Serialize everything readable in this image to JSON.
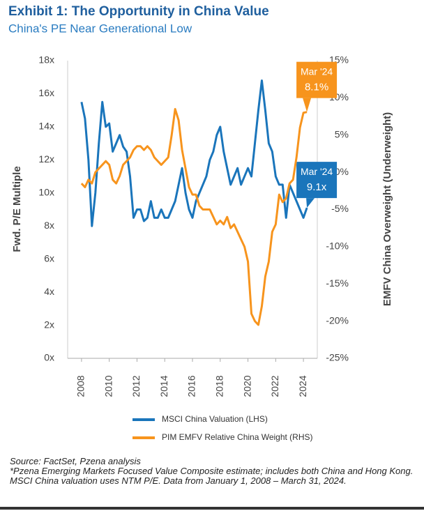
{
  "chart_data": {
    "type": "line",
    "title": "Exhibit 1: The Opportunity in China Value",
    "subtitle": "China's PE Near Generational Low",
    "y_label": "Fwd. P/E Multiple",
    "y2_label": "EMFV China Overweight (Underweight)",
    "x": [
      2008,
      2008.25,
      2008.5,
      2008.75,
      2009,
      2009.25,
      2009.5,
      2009.75,
      2010,
      2010.25,
      2010.5,
      2010.75,
      2011,
      2011.25,
      2011.5,
      2011.75,
      2012,
      2012.25,
      2012.5,
      2012.75,
      2013,
      2013.25,
      2013.5,
      2013.75,
      2014,
      2014.25,
      2014.5,
      2014.75,
      2015,
      2015.25,
      2015.5,
      2015.75,
      2016,
      2016.25,
      2016.5,
      2016.75,
      2017,
      2017.25,
      2017.5,
      2017.75,
      2018,
      2018.25,
      2018.5,
      2018.75,
      2019,
      2019.25,
      2019.5,
      2019.75,
      2020,
      2020.25,
      2020.5,
      2020.75,
      2021,
      2021.25,
      2021.5,
      2021.75,
      2022,
      2022.25,
      2022.5,
      2022.75,
      2023,
      2023.25,
      2023.5,
      2023.75,
      2024,
      2024.25
    ],
    "xlim": [
      2007,
      2025
    ],
    "xticks": [
      2008,
      2010,
      2012,
      2014,
      2016,
      2018,
      2020,
      2022,
      2024
    ],
    "ylim": [
      0,
      18
    ],
    "yticks": [
      {
        "value": 0,
        "label": "0x"
      },
      {
        "value": 2,
        "label": "2x"
      },
      {
        "value": 4,
        "label": "4x"
      },
      {
        "value": 6,
        "label": "6x"
      },
      {
        "value": 8,
        "label": "8x"
      },
      {
        "value": 10,
        "label": "10x"
      },
      {
        "value": 12,
        "label": "12x"
      },
      {
        "value": 14,
        "label": "14x"
      },
      {
        "value": 16,
        "label": "16x"
      },
      {
        "value": 18,
        "label": "18x"
      }
    ],
    "y2lim": [
      -25,
      15
    ],
    "y2ticks": [
      {
        "value": 15,
        "label": "15%"
      },
      {
        "value": 10,
        "label": "10%"
      },
      {
        "value": 5,
        "label": "5%"
      },
      {
        "value": 0,
        "label": "0%"
      },
      {
        "value": -5,
        "label": "-5%"
      },
      {
        "value": -10,
        "label": "-10%"
      },
      {
        "value": -15,
        "label": "-15%"
      },
      {
        "value": -20,
        "label": "-20%"
      },
      {
        "value": -25,
        "label": "-25%"
      }
    ],
    "series": [
      {
        "name": "MSCI China Valuation (LHS)",
        "color": "#1a75bb",
        "end_label": {
          "date": "Mar '24",
          "label": "9.1x"
        },
        "values": [
          15.5,
          14.5,
          12,
          8,
          10,
          13,
          15.5,
          14,
          14.2,
          12.5,
          13,
          13.5,
          12.8,
          12.5,
          11,
          8.5,
          9,
          9,
          8.3,
          8.5,
          9.5,
          8.5,
          8.5,
          9,
          8.5,
          8.5,
          9,
          9.5,
          10.5,
          11.5,
          10,
          9,
          8.5,
          9.5,
          10,
          10.5,
          11,
          12,
          12.5,
          13.5,
          14,
          12.5,
          11.5,
          10.5,
          11,
          11.5,
          10.5,
          11,
          11.5,
          11,
          13,
          15,
          16.8,
          15,
          13,
          12.5,
          11,
          10.5,
          10.5,
          8.5,
          10.5,
          10,
          9.5,
          9,
          8.5,
          9.1
        ]
      },
      {
        "name": "PIM EMFV Relative China Weight (RHS)",
        "color": "#f7941d",
        "axis": "y2",
        "end_label": {
          "date": "Mar '24",
          "label": "8.1%"
        },
        "values": [
          -1.5,
          -2,
          -1,
          -1.5,
          0,
          0.5,
          1,
          1.5,
          1,
          -1,
          -1.5,
          -0.5,
          1,
          1.5,
          2,
          3,
          3.5,
          3.5,
          3,
          3.5,
          3,
          2,
          1.5,
          1,
          1.5,
          2,
          5,
          8.5,
          7,
          3,
          0.5,
          -2,
          -3,
          -3,
          -4.5,
          -5,
          -5,
          -5,
          -6,
          -7,
          -6.5,
          -7,
          -6,
          -7.5,
          -7,
          -8,
          -9,
          -10,
          -12,
          -19,
          -20,
          -20.5,
          -18,
          -14,
          -12,
          -8,
          -7,
          -3,
          -4,
          -3.5,
          -1.5,
          -1,
          2,
          6,
          8,
          8.1
        ]
      }
    ],
    "source": "Source: FactSet, Pzena analysis",
    "note": "*Pzena Emerging Markets Focused Value Composite estimate; includes both China and Hong Kong. MSCI China valuation uses NTM P/E. Data from January 1, 2008 – March 31, 2024."
  }
}
